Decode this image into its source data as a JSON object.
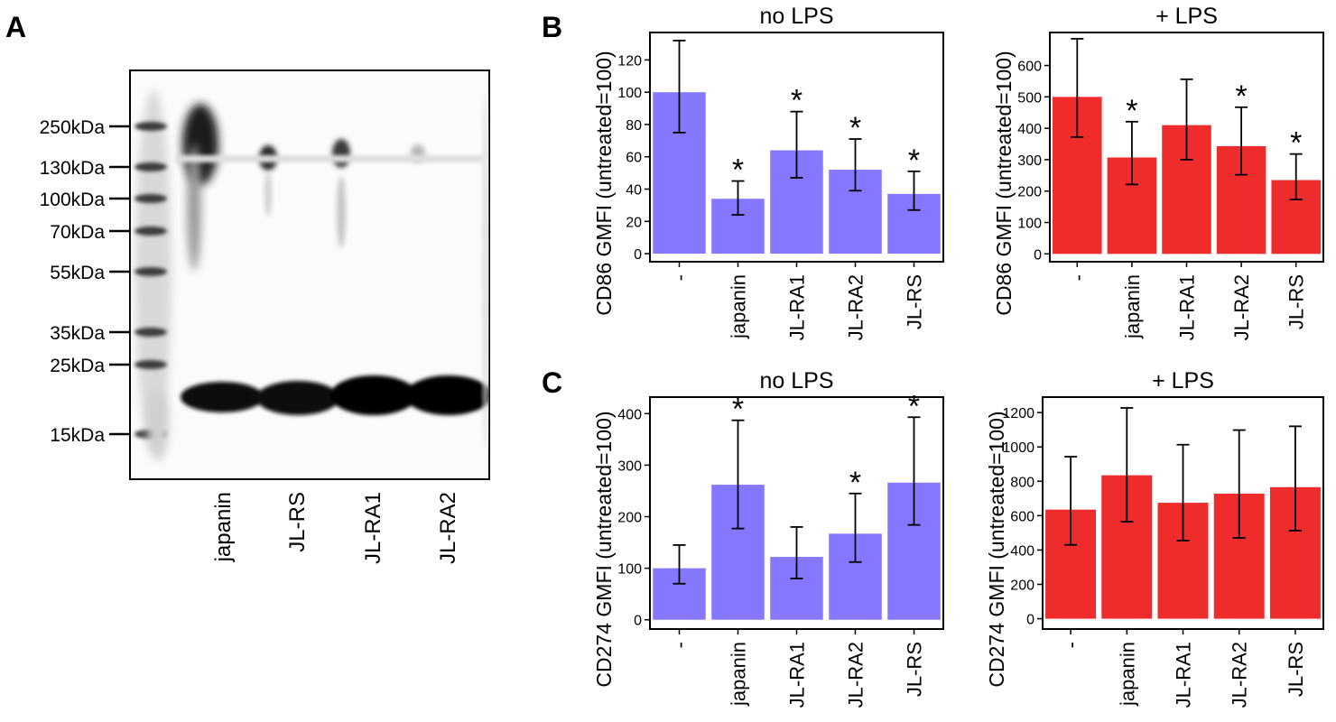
{
  "panels": {
    "A": "A",
    "B": "B",
    "C": "C"
  },
  "blot": {
    "markers": [
      "250kDa",
      "130kDa",
      "100kDa",
      "70kDa",
      "55kDa",
      "35kDa",
      "25kDa",
      "15kDa"
    ],
    "lanes": [
      "japanin",
      "JL-RS",
      "JL-RA1",
      "JL-RA2"
    ]
  },
  "colors": {
    "no_lps": "#8577ff",
    "lps": "#ee2c2c"
  },
  "chart_data": [
    {
      "type": "bar",
      "panel": "B",
      "title": "no LPS",
      "ylabel": "CD86 GMFI (untreated=100)",
      "categories": [
        "-",
        "japanin",
        "JL-RA1",
        "JL-RA2",
        "JL-RS"
      ],
      "values": [
        100,
        34,
        64,
        52,
        37
      ],
      "err_low": [
        75,
        24,
        47,
        39,
        27
      ],
      "err_high": [
        132,
        45,
        88,
        71,
        51
      ],
      "significant": [
        false,
        true,
        true,
        true,
        true
      ],
      "ylim": [
        -5,
        137
      ],
      "yticks": [
        0,
        20,
        40,
        60,
        80,
        100,
        120
      ],
      "color": "#8577ff"
    },
    {
      "type": "bar",
      "panel": "B",
      "title": "+ LPS",
      "ylabel": "CD86 GMFI (untreated=100)",
      "categories": [
        "-",
        "japanin",
        "JL-RA1",
        "JL-RA2",
        "JL-RS"
      ],
      "values": [
        500,
        307,
        410,
        343,
        235
      ],
      "err_low": [
        372,
        221,
        300,
        252,
        173
      ],
      "err_high": [
        685,
        421,
        556,
        467,
        318
      ],
      "significant": [
        false,
        true,
        false,
        true,
        true
      ],
      "ylim": [
        -25,
        705
      ],
      "yticks": [
        0,
        100,
        200,
        300,
        400,
        500,
        600
      ],
      "color": "#ee2c2c"
    },
    {
      "type": "bar",
      "panel": "C",
      "title": "no LPS",
      "ylabel": "CD274 GMFI (untreated=100)",
      "categories": [
        "-",
        "japanin",
        "JL-RA1",
        "JL-RA2",
        "JL-RS"
      ],
      "values": [
        100,
        262,
        122,
        167,
        266
      ],
      "err_low": [
        70,
        177,
        80,
        112,
        184
      ],
      "err_high": [
        145,
        387,
        180,
        245,
        393
      ],
      "significant": [
        false,
        true,
        false,
        true,
        true
      ],
      "ylim": [
        -18,
        432
      ],
      "yticks": [
        0,
        100,
        200,
        300,
        400
      ],
      "color": "#8577ff"
    },
    {
      "type": "bar",
      "panel": "C",
      "title": "+ LPS",
      "ylabel": "CD274 GMFI (untreated=100)",
      "categories": [
        "-",
        "japanin",
        "JL-RA1",
        "JL-RA2",
        "JL-RS"
      ],
      "values": [
        635,
        835,
        675,
        728,
        766
      ],
      "err_low": [
        430,
        565,
        455,
        470,
        513
      ],
      "err_high": [
        943,
        1227,
        1013,
        1098,
        1120
      ],
      "significant": [
        false,
        false,
        false,
        false,
        false
      ],
      "ylim": [
        -60,
        1290
      ],
      "yticks": [
        0,
        200,
        400,
        600,
        800,
        1000,
        1200
      ],
      "color": "#ee2c2c"
    }
  ]
}
